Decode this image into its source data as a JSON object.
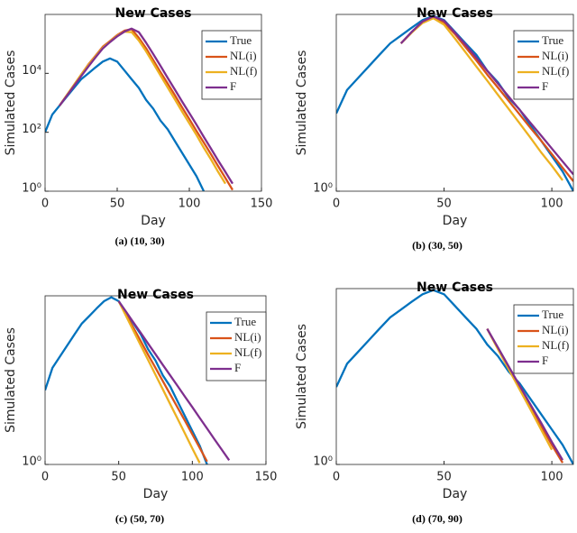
{
  "chart_data": [
    {
      "type": "line",
      "title": "New Cases",
      "xlabel": "Day",
      "ylabel": "Simulated Cases",
      "yscale": "log",
      "legend": "upper right",
      "xlim": [
        0,
        150
      ],
      "xticks": [
        0,
        50,
        100,
        150
      ],
      "ylim": [
        1,
        1000000
      ],
      "yticks": [
        {
          "value": 1,
          "label": "10⁰"
        },
        {
          "value": 100,
          "label": "10²"
        },
        {
          "value": 10000,
          "label": "10⁴"
        }
      ],
      "x": [
        0,
        5,
        10,
        15,
        20,
        25,
        30,
        35,
        40,
        45,
        50,
        55,
        60,
        65,
        70,
        75,
        80,
        85,
        90,
        95,
        100,
        105,
        110,
        115,
        120,
        125,
        130
      ],
      "series": [
        {
          "name": "True",
          "color": "#0072bd",
          "values": [
            100,
            400,
            800,
            1600,
            3200,
            6300,
            10000,
            16000,
            25000,
            32000,
            25000,
            12600,
            6300,
            3200,
            1260,
            630,
            250,
            126,
            50,
            20,
            8,
            3.2,
            1,
            null,
            null,
            null,
            null
          ]
        },
        {
          "name": "NL(i)",
          "color": "#d95319",
          "values": [
            null,
            null,
            800,
            1800,
            4000,
            9000,
            20000,
            40000,
            80000,
            125000,
            200000,
            280000,
            316000,
            160000,
            71000,
            28000,
            11000,
            4500,
            1800,
            700,
            280,
            110,
            45,
            18,
            7,
            2.8,
            1.1
          ]
        },
        {
          "name": "NL(f)",
          "color": "#edb120",
          "values": [
            null,
            null,
            800,
            1800,
            4000,
            9000,
            19000,
            38000,
            75000,
            120000,
            190000,
            260000,
            250000,
            130000,
            56000,
            22000,
            8500,
            3300,
            1300,
            500,
            200,
            80,
            30,
            12,
            4.5,
            1.8,
            null
          ]
        },
        {
          "name": "F",
          "color": "#7e2f8e",
          "values": [
            null,
            null,
            800,
            1700,
            3700,
            8000,
            17000,
            35000,
            70000,
            115000,
            180000,
            260000,
            330000,
            250000,
            110000,
            45000,
            18000,
            7000,
            2800,
            1100,
            450,
            180,
            70,
            28,
            11,
            4.5,
            1.8
          ]
        }
      ]
    },
    {
      "type": "line",
      "title": "New Cases",
      "xlabel": "Day",
      "ylabel": "Simulated Cases",
      "yscale": "log",
      "legend": "upper right",
      "xlim": [
        0,
        110
      ],
      "xticks": [
        0,
        50,
        100
      ],
      "ylim": [
        1,
        35000
      ],
      "yticks": [
        {
          "value": 1,
          "label": "10⁰"
        }
      ],
      "x": [
        0,
        5,
        10,
        15,
        20,
        25,
        30,
        35,
        40,
        45,
        50,
        55,
        60,
        65,
        70,
        75,
        80,
        85,
        90,
        95,
        100,
        105,
        110
      ],
      "series": [
        {
          "name": "True",
          "color": "#0072bd",
          "values": [
            100,
            400,
            800,
            1600,
            3200,
            6300,
            10000,
            16000,
            25000,
            32000,
            25000,
            12600,
            6300,
            3200,
            1260,
            630,
            250,
            126,
            50,
            20,
            8,
            3.2,
            1
          ]
        },
        {
          "name": "NL(i)",
          "color": "#d95319",
          "values": [
            null,
            null,
            null,
            null,
            null,
            null,
            6300,
            12000,
            22000,
            30000,
            22000,
            11000,
            5000,
            2300,
            1000,
            460,
            210,
            95,
            43,
            20,
            9,
            4,
            1.8
          ]
        },
        {
          "name": "NL(f)",
          "color": "#edb120",
          "values": [
            null,
            null,
            null,
            null,
            null,
            null,
            6300,
            12000,
            21000,
            28000,
            19000,
            8500,
            3700,
            1600,
            700,
            300,
            130,
            56,
            24,
            10,
            4.5,
            1.9,
            null
          ]
        },
        {
          "name": "F",
          "color": "#7e2f8e",
          "values": [
            null,
            null,
            null,
            null,
            null,
            null,
            6300,
            12500,
            23000,
            31000,
            24000,
            12000,
            5800,
            2700,
            1250,
            580,
            270,
            125,
            58,
            27,
            12.5,
            5.8,
            2.7
          ]
        }
      ]
    },
    {
      "type": "line",
      "title": "New Cases",
      "xlabel": "Day",
      "ylabel": "Simulated Cases",
      "yscale": "log",
      "legend": "upper right",
      "xlim": [
        0,
        150
      ],
      "xticks": [
        0,
        50,
        100,
        150
      ],
      "ylim": [
        1,
        35000
      ],
      "yticks": [
        {
          "value": 1,
          "label": "10⁰"
        }
      ],
      "x": [
        0,
        5,
        10,
        15,
        20,
        25,
        30,
        35,
        40,
        45,
        50,
        55,
        60,
        65,
        70,
        75,
        80,
        85,
        90,
        95,
        100,
        105,
        110,
        115,
        120,
        125,
        130
      ],
      "series": [
        {
          "name": "True",
          "color": "#0072bd",
          "values": [
            100,
            400,
            800,
            1600,
            3200,
            6300,
            10000,
            16000,
            25000,
            32000,
            25000,
            12600,
            6300,
            3200,
            1260,
            630,
            250,
            126,
            50,
            20,
            8,
            3.2,
            1,
            null,
            null,
            null,
            null
          ]
        },
        {
          "name": "NL(i)",
          "color": "#d95319",
          "values": [
            null,
            null,
            null,
            null,
            null,
            null,
            null,
            null,
            null,
            null,
            25000,
            11000,
            4800,
            2100,
            900,
            400,
            175,
            77,
            34,
            15,
            6.5,
            2.8,
            1.2,
            null,
            null,
            null,
            null
          ]
        },
        {
          "name": "NL(f)",
          "color": "#edb120",
          "values": [
            null,
            null,
            null,
            null,
            null,
            null,
            null,
            null,
            null,
            null,
            25000,
            10000,
            4000,
            1600,
            650,
            260,
            105,
            42,
            17,
            6.8,
            2.7,
            1.1,
            null,
            null,
            null,
            null,
            null
          ]
        },
        {
          "name": "F",
          "color": "#7e2f8e",
          "values": [
            null,
            null,
            null,
            null,
            null,
            null,
            null,
            null,
            null,
            null,
            25000,
            13000,
            6700,
            3500,
            1800,
            930,
            480,
            250,
            130,
            67,
            35,
            18,
            9.3,
            4.8,
            2.5,
            1.3,
            null
          ]
        }
      ]
    },
    {
      "type": "line",
      "title": "New Cases",
      "xlabel": "Day",
      "ylabel": "Simulated Cases",
      "yscale": "log",
      "legend": "upper right",
      "xlim": [
        0,
        110
      ],
      "xticks": [
        0,
        50,
        100
      ],
      "ylim": [
        1,
        35000
      ],
      "yticks": [
        {
          "value": 1,
          "label": "10⁰"
        }
      ],
      "x": [
        0,
        5,
        10,
        15,
        20,
        25,
        30,
        35,
        40,
        45,
        50,
        55,
        60,
        65,
        70,
        75,
        80,
        85,
        90,
        95,
        100,
        105,
        110
      ],
      "series": [
        {
          "name": "True",
          "color": "#0072bd",
          "values": [
            100,
            400,
            800,
            1600,
            3200,
            6300,
            10000,
            16000,
            25000,
            32000,
            25000,
            12600,
            6300,
            3200,
            1260,
            630,
            250,
            126,
            50,
            20,
            8,
            3.2,
            1
          ]
        },
        {
          "name": "NL(i)",
          "color": "#d95319",
          "values": [
            null,
            null,
            null,
            null,
            null,
            null,
            null,
            null,
            null,
            null,
            null,
            null,
            null,
            null,
            3200,
            1000,
            320,
            100,
            32,
            10,
            3.2,
            1.1,
            null
          ]
        },
        {
          "name": "NL(f)",
          "color": "#edb120",
          "values": [
            null,
            null,
            null,
            null,
            null,
            null,
            null,
            null,
            null,
            null,
            null,
            null,
            null,
            null,
            3200,
            950,
            290,
            88,
            27,
            8,
            2.4,
            null,
            null
          ]
        },
        {
          "name": "F",
          "color": "#7e2f8e",
          "values": [
            null,
            null,
            null,
            null,
            null,
            null,
            null,
            null,
            null,
            null,
            null,
            null,
            null,
            null,
            3200,
            1050,
            340,
            110,
            36,
            12,
            3.8,
            1.3,
            null
          ]
        }
      ]
    }
  ],
  "captions": [
    "(a) (10, 30)",
    "(b) (30, 50)",
    "(c) (50, 70)",
    "(d) (70, 90)"
  ]
}
